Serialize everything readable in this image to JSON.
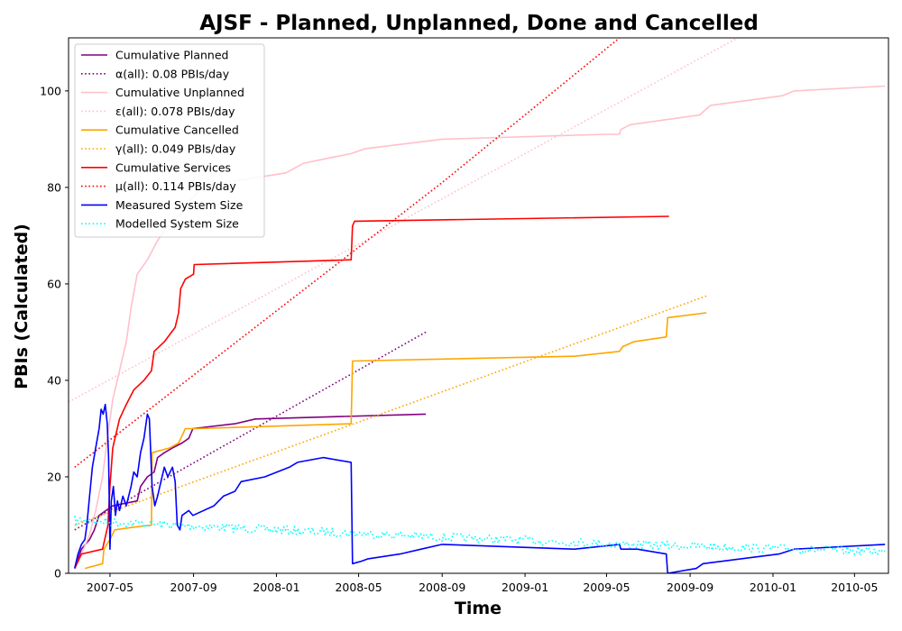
{
  "chart_data": {
    "type": "line",
    "title": "AJSF - Planned, Unplanned, Done  and Cancelled",
    "xlabel": "Time",
    "ylabel": "PBIs (Calculated)",
    "xlim": [
      "2007-03-01",
      "2010-06-20"
    ],
    "ylim": [
      0,
      111
    ],
    "x_ticks": [
      "2007-05",
      "2007-09",
      "2008-01",
      "2008-05",
      "2008-09",
      "2009-01",
      "2009-05",
      "2009-09",
      "2010-01",
      "2010-05"
    ],
    "y_ticks": [
      0,
      20,
      40,
      60,
      80,
      100
    ],
    "grid": false,
    "legend_position": "upper left",
    "series": [
      {
        "name": "Cumulative Planned",
        "style": "solid",
        "color": "#800080",
        "points": [
          [
            "2007-03-10",
            1
          ],
          [
            "2007-03-20",
            5
          ],
          [
            "2007-04-01",
            7
          ],
          [
            "2007-04-08",
            9
          ],
          [
            "2007-04-15",
            12
          ],
          [
            "2007-04-25",
            13
          ],
          [
            "2007-05-05",
            14
          ],
          [
            "2007-06-10",
            15
          ],
          [
            "2007-06-15",
            18
          ],
          [
            "2007-06-25",
            20
          ],
          [
            "2007-07-05",
            21
          ],
          [
            "2007-07-10",
            24
          ],
          [
            "2007-07-20",
            25
          ],
          [
            "2007-08-01",
            26
          ],
          [
            "2007-08-15",
            27
          ],
          [
            "2007-08-25",
            28
          ],
          [
            "2007-08-31",
            30
          ],
          [
            "2007-11-01",
            31
          ],
          [
            "2007-12-01",
            32
          ],
          [
            "2008-08-08",
            33
          ]
        ]
      },
      {
        "name": "α(all): 0.08 PBIs/day",
        "style": "dotted",
        "color": "#800080",
        "points": [
          [
            "2007-03-10",
            9
          ],
          [
            "2008-08-08",
            50
          ]
        ]
      },
      {
        "name": "Cumulative Unplanned",
        "style": "solid",
        "color": "#ffc0cb",
        "points": [
          [
            "2007-03-10",
            1
          ],
          [
            "2007-03-20",
            4
          ],
          [
            "2007-04-01",
            8
          ],
          [
            "2007-04-10",
            13
          ],
          [
            "2007-04-20",
            20
          ],
          [
            "2007-04-28",
            29
          ],
          [
            "2007-05-05",
            36
          ],
          [
            "2007-05-15",
            42
          ],
          [
            "2007-05-25",
            48
          ],
          [
            "2007-06-01",
            55
          ],
          [
            "2007-06-10",
            62
          ],
          [
            "2007-06-25",
            65
          ],
          [
            "2007-07-10",
            69
          ],
          [
            "2007-07-25",
            72
          ],
          [
            "2007-08-10",
            74
          ],
          [
            "2007-08-25",
            77
          ],
          [
            "2007-09-15",
            80
          ],
          [
            "2007-10-15",
            81
          ],
          [
            "2007-12-01",
            82
          ],
          [
            "2008-01-15",
            83
          ],
          [
            "2008-02-10",
            85
          ],
          [
            "2008-03-15",
            86
          ],
          [
            "2008-04-20",
            87
          ],
          [
            "2008-05-10",
            88
          ],
          [
            "2008-09-01",
            90
          ],
          [
            "2009-05-01",
            91
          ],
          [
            "2009-05-20",
            91
          ],
          [
            "2009-05-22",
            92
          ],
          [
            "2009-06-05",
            93
          ],
          [
            "2009-09-15",
            95
          ],
          [
            "2009-10-01",
            97
          ],
          [
            "2010-01-15",
            99
          ],
          [
            "2010-02-01",
            100
          ],
          [
            "2010-06-15",
            101
          ]
        ]
      },
      {
        "name": "ε(all): 0.078 PBIs/day",
        "style": "dotted",
        "color": "#ffc0cb",
        "points": [
          [
            "2007-03-01",
            35.5
          ],
          [
            "2009-11-10",
            111
          ]
        ]
      },
      {
        "name": "Cumulative Cancelled",
        "style": "solid",
        "color": "#ffa500",
        "points": [
          [
            "2007-03-25",
            1
          ],
          [
            "2007-04-20",
            2
          ],
          [
            "2007-04-22",
            5
          ],
          [
            "2007-05-01",
            7
          ],
          [
            "2007-05-08",
            9
          ],
          [
            "2007-06-01",
            9.5
          ],
          [
            "2007-07-01",
            10
          ],
          [
            "2007-07-02",
            25
          ],
          [
            "2007-07-28",
            26
          ],
          [
            "2007-08-10",
            27
          ],
          [
            "2007-08-20",
            30
          ],
          [
            "2007-09-05",
            30
          ],
          [
            "2008-04-20",
            31
          ],
          [
            "2008-04-22",
            44
          ],
          [
            "2009-03-15",
            45
          ],
          [
            "2009-05-20",
            46
          ],
          [
            "2009-05-25",
            47
          ],
          [
            "2009-06-10",
            48
          ],
          [
            "2009-07-28",
            49
          ],
          [
            "2009-07-30",
            53
          ],
          [
            "2009-09-25",
            54
          ]
        ]
      },
      {
        "name": "γ(all): 0.049 PBIs/day",
        "style": "dotted",
        "color": "#ffa500",
        "points": [
          [
            "2007-03-10",
            10
          ],
          [
            "2009-09-25",
            57.5
          ]
        ]
      },
      {
        "name": "Cumulative Services",
        "style": "solid",
        "color": "#ff0000",
        "points": [
          [
            "2007-03-10",
            1
          ],
          [
            "2007-03-20",
            4
          ],
          [
            "2007-04-20",
            5
          ],
          [
            "2007-04-28",
            10
          ],
          [
            "2007-05-01",
            18
          ],
          [
            "2007-05-05",
            26
          ],
          [
            "2007-05-15",
            32
          ],
          [
            "2007-05-25",
            35
          ],
          [
            "2007-06-05",
            38
          ],
          [
            "2007-06-20",
            40
          ],
          [
            "2007-07-01",
            42
          ],
          [
            "2007-07-05",
            46
          ],
          [
            "2007-07-20",
            48
          ],
          [
            "2007-08-05",
            51
          ],
          [
            "2007-08-10",
            54
          ],
          [
            "2007-08-13",
            59
          ],
          [
            "2007-08-20",
            61
          ],
          [
            "2007-09-01",
            62
          ],
          [
            "2007-09-02",
            64
          ],
          [
            "2008-04-20",
            65
          ],
          [
            "2008-04-22",
            72
          ],
          [
            "2008-04-25",
            73
          ],
          [
            "2009-08-01",
            74
          ]
        ]
      },
      {
        "name": "μ(all): 0.114 PBIs/day",
        "style": "dotted",
        "color": "#ff0000",
        "points": [
          [
            "2007-03-10",
            22
          ],
          [
            "2008-09-01",
            81
          ],
          [
            "2009-05-20",
            111
          ]
        ]
      },
      {
        "name": "Measured System Size",
        "style": "solid",
        "color": "#0000ff",
        "points": [
          [
            "2007-03-10",
            1
          ],
          [
            "2007-03-15",
            4
          ],
          [
            "2007-03-20",
            6
          ],
          [
            "2007-03-25",
            7
          ],
          [
            "2007-03-28",
            10
          ],
          [
            "2007-04-01",
            16
          ],
          [
            "2007-04-05",
            22
          ],
          [
            "2007-04-10",
            26
          ],
          [
            "2007-04-15",
            30
          ],
          [
            "2007-04-18",
            34
          ],
          [
            "2007-04-21",
            33
          ],
          [
            "2007-04-24",
            35
          ],
          [
            "2007-04-27",
            31
          ],
          [
            "2007-04-29",
            24
          ],
          [
            "2007-05-01",
            5
          ],
          [
            "2007-05-03",
            15
          ],
          [
            "2007-05-06",
            18
          ],
          [
            "2007-05-09",
            12
          ],
          [
            "2007-05-12",
            15
          ],
          [
            "2007-05-15",
            13
          ],
          [
            "2007-05-20",
            16
          ],
          [
            "2007-05-25",
            14
          ],
          [
            "2007-06-01",
            18
          ],
          [
            "2007-06-05",
            21
          ],
          [
            "2007-06-10",
            20
          ],
          [
            "2007-06-15",
            25
          ],
          [
            "2007-06-20",
            28
          ],
          [
            "2007-06-25",
            33
          ],
          [
            "2007-06-28",
            32
          ],
          [
            "2007-07-02",
            18
          ],
          [
            "2007-07-06",
            14
          ],
          [
            "2007-07-10",
            16
          ],
          [
            "2007-07-15",
            19
          ],
          [
            "2007-07-20",
            22
          ],
          [
            "2007-07-25",
            20
          ],
          [
            "2007-08-01",
            22
          ],
          [
            "2007-08-05",
            19
          ],
          [
            "2007-08-08",
            10
          ],
          [
            "2007-08-12",
            9
          ],
          [
            "2007-08-15",
            12
          ],
          [
            "2007-08-25",
            13
          ],
          [
            "2007-08-31",
            12
          ],
          [
            "2007-10-01",
            14
          ],
          [
            "2007-10-15",
            16
          ],
          [
            "2007-11-01",
            17
          ],
          [
            "2007-11-10",
            19
          ],
          [
            "2007-12-15",
            20
          ],
          [
            "2008-01-20",
            22
          ],
          [
            "2008-02-01",
            23
          ],
          [
            "2008-03-10",
            24
          ],
          [
            "2008-04-20",
            23
          ],
          [
            "2008-04-22",
            2
          ],
          [
            "2008-05-05",
            2.5
          ],
          [
            "2008-05-15",
            3
          ],
          [
            "2008-07-01",
            4
          ],
          [
            "2008-08-01",
            5
          ],
          [
            "2008-09-01",
            6
          ],
          [
            "2009-03-15",
            5
          ],
          [
            "2009-05-20",
            6
          ],
          [
            "2009-05-22",
            5
          ],
          [
            "2009-06-15",
            5
          ],
          [
            "2009-07-28",
            4
          ],
          [
            "2009-07-30",
            0
          ],
          [
            "2009-09-10",
            1
          ],
          [
            "2009-09-20",
            2
          ],
          [
            "2010-01-10",
            4
          ],
          [
            "2010-02-01",
            5
          ],
          [
            "2010-06-15",
            6
          ]
        ]
      },
      {
        "name": "Modelled System Size",
        "style": "dotted",
        "color": "#00ffff",
        "noise": 0.9,
        "points": [
          [
            "2007-03-10",
            11
          ],
          [
            "2007-08-01",
            10
          ],
          [
            "2008-01-01",
            9
          ],
          [
            "2008-09-01",
            7.5
          ],
          [
            "2009-06-01",
            6
          ],
          [
            "2010-06-15",
            4.5
          ]
        ]
      }
    ]
  }
}
